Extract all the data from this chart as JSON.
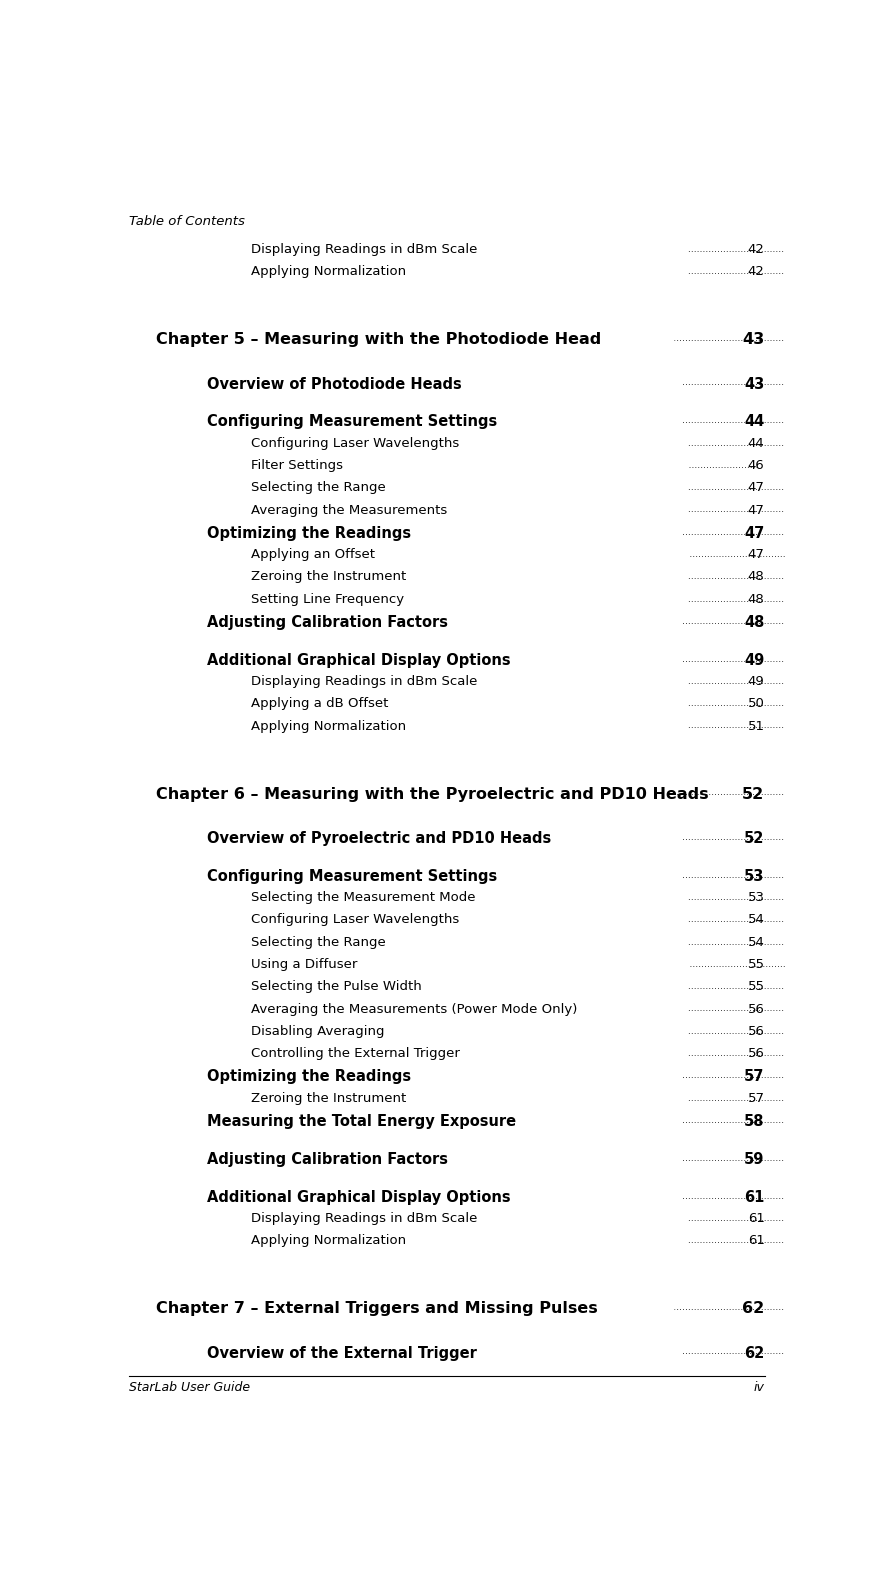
{
  "header": "Table of Contents",
  "footer_left": "StarLab User Guide",
  "footer_right": "iv",
  "bg_color": "#ffffff",
  "entries": [
    {
      "text": "Displaying Readings in dBm Scale",
      "page": "42",
      "level": 3,
      "bold": false
    },
    {
      "text": "Applying Normalization",
      "page": "42",
      "level": 3,
      "bold": false
    },
    {
      "text": "Chapter 5 – Measuring with the Photodiode Head",
      "page": "43",
      "level": 1,
      "bold": true
    },
    {
      "text": "Overview of Photodiode Heads",
      "page": "43",
      "level": 2,
      "bold": true
    },
    {
      "text": "Configuring Measurement Settings",
      "page": "44",
      "level": 2,
      "bold": true
    },
    {
      "text": "Configuring Laser Wavelengths",
      "page": "44",
      "level": 3,
      "bold": false
    },
    {
      "text": "Filter Settings",
      "page": "46",
      "level": 3,
      "bold": false
    },
    {
      "text": "Selecting the Range",
      "page": "47",
      "level": 3,
      "bold": false
    },
    {
      "text": "Averaging the Measurements",
      "page": "47",
      "level": 3,
      "bold": false
    },
    {
      "text": "Optimizing the Readings",
      "page": "47",
      "level": 2,
      "bold": true
    },
    {
      "text": "Applying an Offset",
      "page": "47",
      "level": 3,
      "bold": false
    },
    {
      "text": "Zeroing the Instrument",
      "page": "48",
      "level": 3,
      "bold": false
    },
    {
      "text": "Setting Line Frequency",
      "page": "48",
      "level": 3,
      "bold": false
    },
    {
      "text": "Adjusting Calibration Factors",
      "page": "48",
      "level": 2,
      "bold": true
    },
    {
      "text": "Additional Graphical Display Options",
      "page": "49",
      "level": 2,
      "bold": true
    },
    {
      "text": "Displaying Readings in dBm Scale",
      "page": "49",
      "level": 3,
      "bold": false
    },
    {
      "text": "Applying a dB Offset",
      "page": "50",
      "level": 3,
      "bold": false
    },
    {
      "text": "Applying Normalization",
      "page": "51",
      "level": 3,
      "bold": false
    },
    {
      "text": "Chapter 6 – Measuring with the Pyroelectric and PD10 Heads",
      "page": "52",
      "level": 1,
      "bold": true
    },
    {
      "text": "Overview of Pyroelectric and PD10 Heads",
      "page": "52",
      "level": 2,
      "bold": true
    },
    {
      "text": "Configuring Measurement Settings",
      "page": "53",
      "level": 2,
      "bold": true
    },
    {
      "text": "Selecting the Measurement Mode",
      "page": "53",
      "level": 3,
      "bold": false
    },
    {
      "text": "Configuring Laser Wavelengths",
      "page": "54",
      "level": 3,
      "bold": false
    },
    {
      "text": "Selecting the Range",
      "page": "54",
      "level": 3,
      "bold": false
    },
    {
      "text": "Using a Diffuser",
      "page": "55",
      "level": 3,
      "bold": false
    },
    {
      "text": "Selecting the Pulse Width",
      "page": "55",
      "level": 3,
      "bold": false
    },
    {
      "text": "Averaging the Measurements (Power Mode Only)",
      "page": "56",
      "level": 3,
      "bold": false
    },
    {
      "text": "Disabling Averaging",
      "page": "56",
      "level": 3,
      "bold": false
    },
    {
      "text": "Controlling the External Trigger",
      "page": "56",
      "level": 3,
      "bold": false
    },
    {
      "text": "Optimizing the Readings",
      "page": "57",
      "level": 2,
      "bold": true
    },
    {
      "text": "Zeroing the Instrument",
      "page": "57",
      "level": 3,
      "bold": false
    },
    {
      "text": "Measuring the Total Energy Exposure",
      "page": "58",
      "level": 2,
      "bold": true
    },
    {
      "text": "Adjusting Calibration Factors",
      "page": "59",
      "level": 2,
      "bold": true
    },
    {
      "text": "Additional Graphical Display Options",
      "page": "61",
      "level": 2,
      "bold": true
    },
    {
      "text": "Displaying Readings in dBm Scale",
      "page": "61",
      "level": 3,
      "bold": false
    },
    {
      "text": "Applying Normalization",
      "page": "61",
      "level": 3,
      "bold": false
    },
    {
      "text": "Chapter 7 – External Triggers and Missing Pulses",
      "page": "62",
      "level": 1,
      "bold": true
    },
    {
      "text": "Overview of the External Trigger",
      "page": "62",
      "level": 2,
      "bold": true
    }
  ],
  "level_indent": {
    "1": 0.07,
    "2": 0.145,
    "3": 0.21
  },
  "level_fontsize": {
    "1": 11.5,
    "2": 10.5,
    "3": 9.5
  },
  "header_fontsize": 9.5,
  "footer_fontsize": 9.0,
  "text_color": "#000000"
}
